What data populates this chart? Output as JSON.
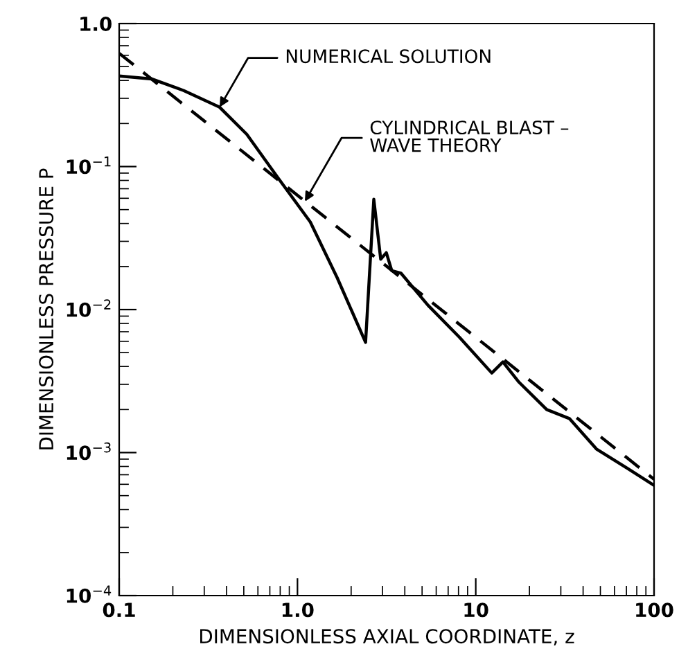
{
  "chart_data": {
    "type": "line",
    "xlabel": "DIMENSIONLESS AXIAL COORDINATE, z",
    "ylabel": "DIMENSIONLESS PRESSURE P",
    "log": "xy",
    "xlim": [
      0.1,
      100
    ],
    "ylim": [
      0.0001,
      1.0
    ],
    "xticks": [
      {
        "value": 0.1,
        "label": "0.1"
      },
      {
        "value": 1,
        "label": "1.0"
      },
      10,
      100
    ],
    "yticks": [
      {
        "value": 0.0001,
        "label": "10$^{−4}$"
      },
      {
        "value": 0.001,
        "label": "10$^{−3}$"
      },
      {
        "value": 0.01,
        "label": "10$^{−2}$"
      },
      {
        "value": 0.1,
        "label": "10$^{−1}$"
      },
      {
        "value": 1.0,
        "label": "1.0"
      }
    ],
    "grid": false,
    "marker": "none",
    "series": [
      {
        "color": "#000000",
        "line_style": "solid",
        "x": [
          0.1,
          0.152,
          0.23,
          0.366,
          0.52,
          0.78,
          1.18,
          1.67,
          2.41,
          2.68,
          2.93,
          3.15,
          3.38,
          3.8,
          5.4,
          8.1,
          12.3,
          14.2,
          17.5,
          25,
          33.5,
          47.5,
          71.5,
          100
        ],
        "values": [
          0.43,
          0.41,
          0.34,
          0.26,
          0.168,
          0.083,
          0.041,
          0.0167,
          0.0059,
          0.059,
          0.0225,
          0.025,
          0.0187,
          0.018,
          0.0107,
          0.0064,
          0.0036,
          0.0043,
          0.0031,
          0.002,
          0.00173,
          0.00106,
          0.00077,
          0.00059
        ]
      },
      {
        "color": "#000000",
        "line_style": "dashed",
        "x": [
          0.1,
          100
        ],
        "values": [
          0.62,
          0.00065
        ]
      }
    ],
    "annotations": [
      {
        "text": "NUMERICAL SOLUTION",
        "x": 0.366,
        "y": 0.26
      },
      {
        "text": "CYLINDRICAL BLAST –\nWAVE THEORY",
        "x": 1.1,
        "y": 0.057
      }
    ]
  }
}
